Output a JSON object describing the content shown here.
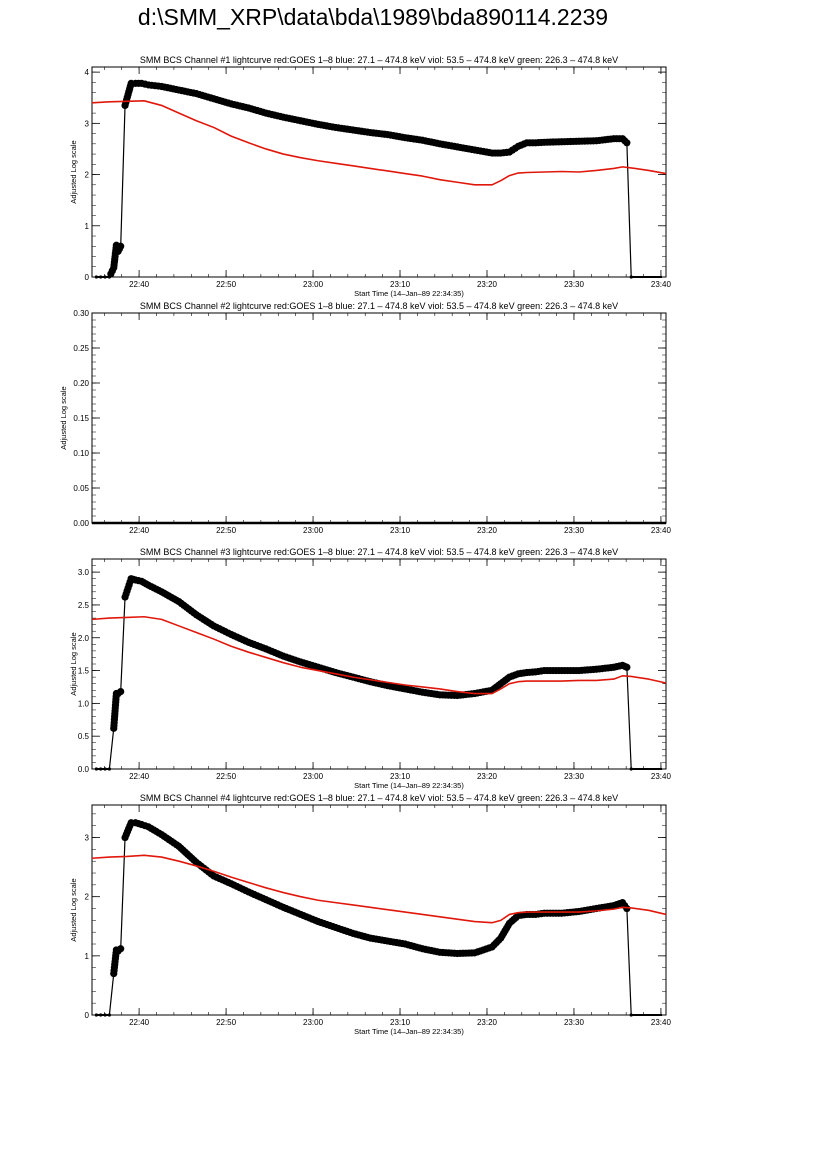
{
  "page_title": "d:\\SMM_XRP\\data\\bda\\1989\\bda890114.2239",
  "colors": {
    "data": "#000000",
    "goes": "#e0180c",
    "axis": "#000000"
  },
  "chart_data": [
    {
      "type": "line",
      "title": "SMM BCS Channel #1 lightcurve  red:GOES 1–8  blue: 27.1 – 474.8 keV  viol: 53.5 – 474.8 keV  green: 226.3 – 474.8 keV",
      "xlabel": "Start Time (14–Jan–89 22:34:35)",
      "ylabel": "Adjusted Log scale",
      "x_unit": "minutes after 22:34:35",
      "xlim": [
        0,
        66
      ],
      "ylim": [
        0,
        4.1
      ],
      "x_ticks": [
        "22:40",
        "22:50",
        "23:00",
        "23:10",
        "23:20",
        "23:30",
        "23:40"
      ],
      "x_tick_values": [
        5.417,
        15.417,
        25.417,
        35.417,
        45.417,
        55.417,
        65.417
      ],
      "y_ticks": [
        "0",
        "1",
        "2",
        "3",
        "4"
      ],
      "y_tick_values": [
        0,
        1,
        2,
        3,
        4
      ],
      "series": [
        {
          "color": "black",
          "style": "dots",
          "x": [
            0.5,
            1,
            1.5,
            2,
            2.5,
            2.8,
            3.0,
            3.3,
            3.8,
            4.5,
            5.0,
            5.7,
            6.5,
            8,
            10,
            12,
            14,
            16,
            18,
            20,
            22,
            24,
            26,
            28,
            30,
            32,
            34,
            36,
            38,
            40,
            42,
            44,
            46,
            47,
            48,
            49,
            50,
            51,
            52,
            54,
            56,
            58,
            60,
            61,
            61.5,
            62.0
          ],
          "y": [
            0,
            0,
            0,
            0,
            0.18,
            0.62,
            0.5,
            0.6,
            3.35,
            3.78,
            3.78,
            3.78,
            3.75,
            3.72,
            3.65,
            3.58,
            3.48,
            3.38,
            3.3,
            3.2,
            3.12,
            3.05,
            2.98,
            2.92,
            2.87,
            2.82,
            2.78,
            2.72,
            2.67,
            2.6,
            2.54,
            2.48,
            2.42,
            2.42,
            2.44,
            2.55,
            2.62,
            2.62,
            2.63,
            2.64,
            2.65,
            2.66,
            2.7,
            2.7,
            2.62,
            0
          ]
        },
        {
          "color": "red",
          "style": "line",
          "x": [
            0,
            2,
            4,
            6,
            8,
            10,
            12,
            14,
            16,
            18,
            20,
            22,
            24,
            26,
            28,
            30,
            32,
            34,
            36,
            38,
            40,
            42,
            44,
            46,
            47,
            48,
            49,
            50,
            52,
            54,
            56,
            58,
            60,
            61,
            62,
            64,
            66
          ],
          "y": [
            3.4,
            3.42,
            3.43,
            3.44,
            3.35,
            3.2,
            3.05,
            2.92,
            2.75,
            2.62,
            2.5,
            2.4,
            2.33,
            2.27,
            2.22,
            2.17,
            2.12,
            2.07,
            2.02,
            1.97,
            1.9,
            1.85,
            1.8,
            1.8,
            1.88,
            1.98,
            2.03,
            2.04,
            2.05,
            2.06,
            2.05,
            2.08,
            2.12,
            2.15,
            2.13,
            2.08,
            2.02
          ]
        }
      ]
    },
    {
      "type": "line",
      "title": "SMM BCS Channel #2 lightcurve  red:GOES 1–8  blue: 27.1 – 474.8 keV  viol: 53.5 – 474.8 keV  green: 226.3 – 474.8 keV",
      "xlabel": "",
      "ylabel": "Adjusted Log scale",
      "x_unit": "minutes after 22:34:35",
      "xlim": [
        0,
        66
      ],
      "ylim": [
        0,
        0.3
      ],
      "x_ticks": [
        "22:40",
        "22:50",
        "23:00",
        "23:10",
        "23:20",
        "23:30",
        "23:40"
      ],
      "x_tick_values": [
        5.417,
        15.417,
        25.417,
        35.417,
        45.417,
        55.417,
        65.417
      ],
      "y_ticks": [
        "0.00",
        "0.05",
        "0.10",
        "0.15",
        "0.20",
        "0.25",
        "0.30"
      ],
      "y_tick_values": [
        0,
        0.05,
        0.1,
        0.15,
        0.2,
        0.25,
        0.3
      ],
      "series": [
        {
          "color": "black",
          "style": "line",
          "x": [
            0,
            66
          ],
          "y": [
            0,
            0
          ]
        }
      ]
    },
    {
      "type": "line",
      "title": "SMM BCS Channel #3 lightcurve  red:GOES 1–8  blue: 27.1 – 474.8 keV  viol: 53.5 – 474.8 keV  green: 226.3 – 474.8 keV",
      "xlabel": "Start Time (14–Jan–89 22:34:35)",
      "ylabel": "Adjusted Log scale",
      "x_unit": "minutes after 22:34:35",
      "xlim": [
        0,
        66
      ],
      "ylim": [
        0,
        3.2
      ],
      "x_ticks": [
        "22:40",
        "22:50",
        "23:00",
        "23:10",
        "23:20",
        "23:30",
        "23:40"
      ],
      "x_tick_values": [
        5.417,
        15.417,
        25.417,
        35.417,
        45.417,
        55.417,
        65.417
      ],
      "y_ticks": [
        "0.0",
        "0.5",
        "1.0",
        "1.5",
        "2.0",
        "2.5",
        "3.0"
      ],
      "y_tick_values": [
        0,
        0.5,
        1,
        1.5,
        2,
        2.5,
        3
      ],
      "series": [
        {
          "color": "black",
          "style": "dots",
          "x": [
            0.5,
            1,
            1.5,
            2,
            2.5,
            2.8,
            3.0,
            3.3,
            3.8,
            4.5,
            5.0,
            5.7,
            6.5,
            8,
            10,
            12,
            14,
            16,
            18,
            20,
            22,
            24,
            26,
            28,
            30,
            32,
            34,
            36,
            38,
            40,
            42,
            44,
            46,
            47,
            48,
            49,
            50,
            51,
            52,
            54,
            56,
            58,
            60,
            61,
            61.5,
            62.0
          ],
          "y": [
            0,
            0,
            0,
            0,
            0.62,
            1.15,
            1.15,
            1.18,
            2.62,
            2.9,
            2.88,
            2.86,
            2.8,
            2.7,
            2.55,
            2.35,
            2.18,
            2.05,
            1.93,
            1.83,
            1.72,
            1.63,
            1.55,
            1.47,
            1.4,
            1.33,
            1.27,
            1.22,
            1.17,
            1.13,
            1.12,
            1.15,
            1.2,
            1.3,
            1.4,
            1.45,
            1.47,
            1.48,
            1.5,
            1.5,
            1.5,
            1.52,
            1.55,
            1.58,
            1.55,
            0
          ]
        },
        {
          "color": "red",
          "style": "line",
          "x": [
            0,
            2,
            4,
            6,
            8,
            10,
            12,
            14,
            16,
            18,
            20,
            22,
            24,
            26,
            28,
            30,
            32,
            34,
            36,
            38,
            40,
            42,
            44,
            46,
            47,
            48,
            49,
            50,
            52,
            54,
            56,
            58,
            60,
            61,
            62,
            64,
            66
          ],
          "y": [
            2.28,
            2.3,
            2.31,
            2.32,
            2.28,
            2.18,
            2.08,
            1.98,
            1.87,
            1.78,
            1.7,
            1.62,
            1.55,
            1.5,
            1.45,
            1.4,
            1.36,
            1.32,
            1.28,
            1.25,
            1.22,
            1.18,
            1.15,
            1.15,
            1.22,
            1.3,
            1.33,
            1.34,
            1.34,
            1.34,
            1.35,
            1.35,
            1.37,
            1.42,
            1.41,
            1.37,
            1.31
          ]
        }
      ]
    },
    {
      "type": "line",
      "title": "SMM BCS Channel #4 lightcurve  red:GOES 1–8  blue: 27.1 – 474.8 keV  viol: 53.5 – 474.8 keV  green: 226.3 – 474.8 keV",
      "xlabel": "Start Time (14–Jan–89 22:34:35)",
      "ylabel": "Adjusted Log scale",
      "x_unit": "minutes after 22:34:35",
      "xlim": [
        0,
        66
      ],
      "ylim": [
        0,
        3.55
      ],
      "x_ticks": [
        "22:40",
        "22:50",
        "23:00",
        "23:10",
        "23:20",
        "23:30",
        "23:40"
      ],
      "x_tick_values": [
        5.417,
        15.417,
        25.417,
        35.417,
        45.417,
        55.417,
        65.417
      ],
      "y_ticks": [
        "0",
        "1",
        "2",
        "3"
      ],
      "y_tick_values": [
        0,
        1,
        2,
        3
      ],
      "series": [
        {
          "color": "black",
          "style": "dots",
          "x": [
            0.5,
            1,
            1.5,
            2,
            2.5,
            2.8,
            3.0,
            3.3,
            3.8,
            4.5,
            5.0,
            5.7,
            6.5,
            8,
            10,
            12,
            14,
            16,
            18,
            20,
            22,
            24,
            26,
            28,
            30,
            32,
            34,
            36,
            38,
            40,
            42,
            44,
            46,
            47,
            48,
            49,
            50,
            51,
            52,
            54,
            56,
            58,
            60,
            61,
            61.5,
            62.0
          ],
          "y": [
            0,
            0,
            0,
            0,
            0.7,
            1.1,
            1.08,
            1.12,
            3.0,
            3.25,
            3.25,
            3.22,
            3.18,
            3.05,
            2.85,
            2.58,
            2.35,
            2.22,
            2.08,
            1.95,
            1.82,
            1.7,
            1.58,
            1.48,
            1.38,
            1.3,
            1.25,
            1.2,
            1.12,
            1.06,
            1.04,
            1.05,
            1.15,
            1.3,
            1.55,
            1.68,
            1.7,
            1.7,
            1.72,
            1.72,
            1.75,
            1.8,
            1.85,
            1.9,
            1.8,
            0
          ]
        },
        {
          "color": "red",
          "style": "line",
          "x": [
            0,
            2,
            4,
            6,
            8,
            10,
            12,
            14,
            16,
            18,
            20,
            22,
            24,
            26,
            28,
            30,
            32,
            34,
            36,
            38,
            40,
            42,
            44,
            46,
            47,
            48,
            49,
            50,
            52,
            54,
            56,
            58,
            60,
            61,
            62,
            64,
            66
          ],
          "y": [
            2.65,
            2.67,
            2.68,
            2.7,
            2.67,
            2.6,
            2.52,
            2.43,
            2.33,
            2.24,
            2.15,
            2.07,
            2.0,
            1.94,
            1.9,
            1.86,
            1.82,
            1.78,
            1.74,
            1.7,
            1.66,
            1.62,
            1.58,
            1.56,
            1.6,
            1.7,
            1.73,
            1.74,
            1.74,
            1.74,
            1.74,
            1.76,
            1.79,
            1.82,
            1.81,
            1.77,
            1.7
          ]
        }
      ]
    }
  ]
}
